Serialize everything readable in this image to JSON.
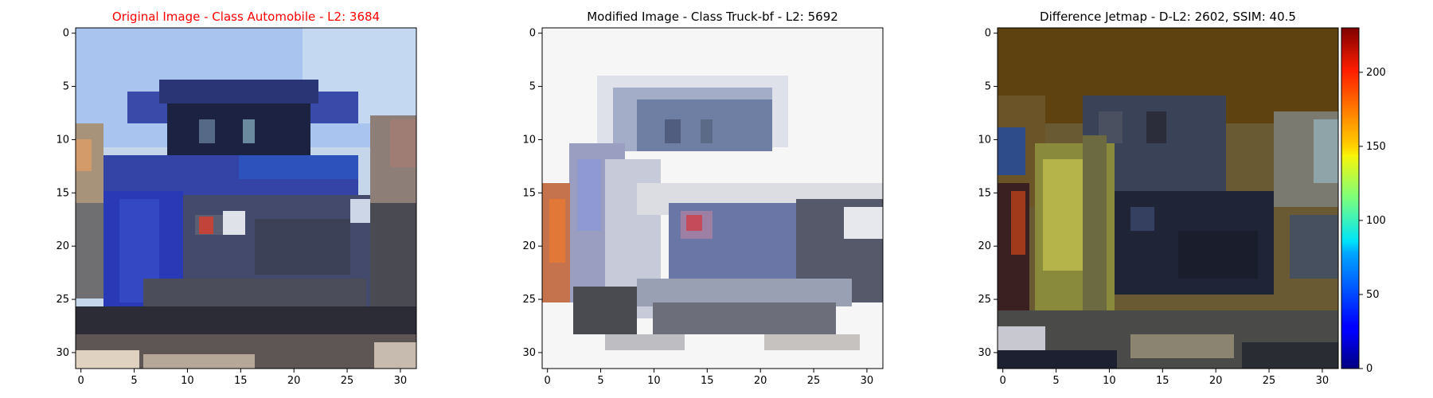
{
  "figure": {
    "panels": [
      {
        "id": "original",
        "title": "Original Image - Class Automobile - L2: 3684",
        "title_color": "#ff0000",
        "class_label": "Automobile",
        "l2": 3684,
        "x_ticks": [
          "0",
          "5",
          "10",
          "15",
          "20",
          "25",
          "30"
        ],
        "y_ticks": [
          "0",
          "5",
          "10",
          "15",
          "20",
          "25",
          "30"
        ],
        "image_size": [
          32,
          32
        ]
      },
      {
        "id": "modified",
        "title": "Modified Image - Class Truck-bf - L2: 5692",
        "title_color": "#000000",
        "class_label": "Truck-bf",
        "l2": 5692,
        "x_ticks": [
          "0",
          "5",
          "10",
          "15",
          "20",
          "25",
          "30"
        ],
        "y_ticks": [
          "0",
          "5",
          "10",
          "15",
          "20",
          "25",
          "30"
        ],
        "image_size": [
          32,
          32
        ]
      },
      {
        "id": "difference",
        "title": "Difference Jetmap - D-L2: 2602, SSIM: 40.5",
        "title_color": "#000000",
        "d_l2": 2602,
        "ssim": 40.5,
        "x_ticks": [
          "0",
          "5",
          "10",
          "15",
          "20",
          "25",
          "30"
        ],
        "y_ticks": [
          "0",
          "5",
          "10",
          "15",
          "20",
          "25",
          "30"
        ],
        "image_size": [
          32,
          32
        ]
      }
    ],
    "colorbar": {
      "colormap": "jet",
      "range": [
        0,
        230
      ],
      "ticks": [
        "0",
        "50",
        "100",
        "150",
        "200"
      ]
    }
  }
}
